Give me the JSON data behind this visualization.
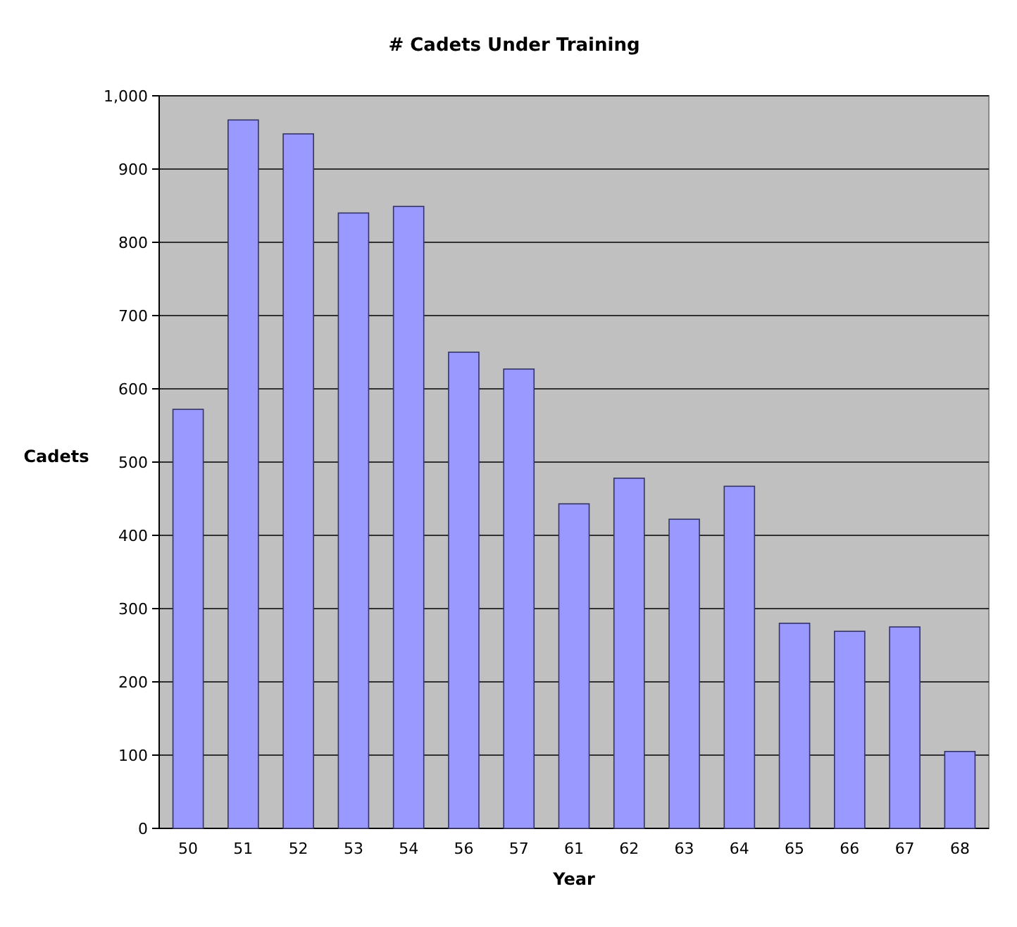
{
  "chart_data": {
    "type": "bar",
    "title": "# Cadets Under Training",
    "xlabel": "Year",
    "ylabel": "Cadets",
    "categories": [
      "50",
      "51",
      "52",
      "53",
      "54",
      "56",
      "57",
      "61",
      "62",
      "63",
      "64",
      "65",
      "66",
      "67",
      "68"
    ],
    "values": [
      572,
      967,
      948,
      840,
      849,
      650,
      627,
      443,
      478,
      422,
      467,
      280,
      269,
      275,
      105
    ],
    "color": "#9999ff",
    "ylim": [
      0,
      1000
    ],
    "yticks": [
      {
        "value": 0,
        "label": "0"
      },
      {
        "value": 100,
        "label": "100"
      },
      {
        "value": 200,
        "label": "200"
      },
      {
        "value": 300,
        "label": "300"
      },
      {
        "value": 400,
        "label": "400"
      },
      {
        "value": 500,
        "label": "500"
      },
      {
        "value": 600,
        "label": "600"
      },
      {
        "value": 700,
        "label": "700"
      },
      {
        "value": 800,
        "label": "800"
      },
      {
        "value": 900,
        "label": "900"
      },
      {
        "value": 1000,
        "label": "1,000"
      }
    ],
    "grid": "y"
  }
}
